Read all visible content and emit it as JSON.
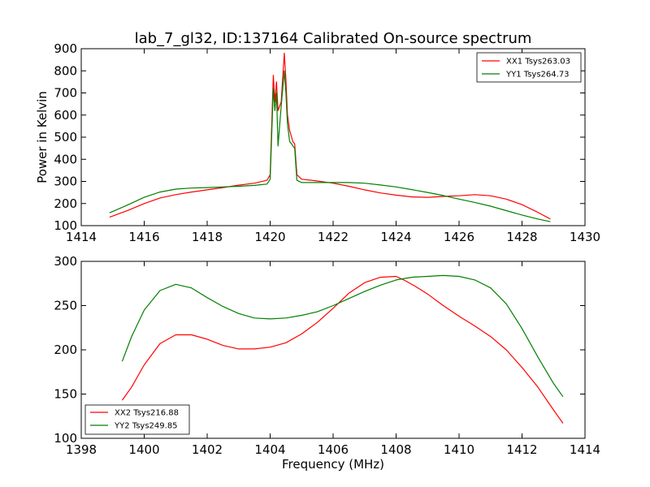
{
  "figure": {
    "title": "lab_7_gl32, ID:137164 Calibrated On-source spectrum"
  },
  "chart_data": [
    {
      "type": "line",
      "title": "lab_7_gl32, ID:137164 Calibrated On-source spectrum",
      "xlabel": "",
      "ylabel": "Power in Kelvin",
      "xlim": [
        1414,
        1430
      ],
      "ylim": [
        100,
        900
      ],
      "xticks": [
        1414,
        1416,
        1418,
        1420,
        1422,
        1424,
        1426,
        1428,
        1430
      ],
      "yticks": [
        100,
        200,
        300,
        400,
        500,
        600,
        700,
        800,
        900
      ],
      "grid": false,
      "legend_position": "top-right",
      "series": [
        {
          "name": "XX1 Tsys263.03",
          "color": "#ff0000",
          "x": [
            1414.9,
            1415.5,
            1416,
            1416.5,
            1417,
            1417.5,
            1418,
            1418.5,
            1419,
            1419.5,
            1419.9,
            1420.0,
            1420.1,
            1420.15,
            1420.2,
            1420.25,
            1420.35,
            1420.45,
            1420.5,
            1420.55,
            1420.62,
            1420.68,
            1420.72,
            1420.78,
            1420.85,
            1421,
            1421.5,
            1422,
            1422.5,
            1423,
            1423.5,
            1424,
            1424.5,
            1425,
            1425.5,
            1426,
            1426.5,
            1427,
            1427.5,
            1428,
            1428.5,
            1428.9
          ],
          "y": [
            138,
            170,
            200,
            225,
            240,
            252,
            262,
            272,
            283,
            292,
            305,
            330,
            780,
            660,
            750,
            620,
            660,
            880,
            760,
            600,
            530,
            500,
            480,
            470,
            330,
            310,
            302,
            292,
            278,
            262,
            248,
            238,
            230,
            228,
            232,
            235,
            240,
            235,
            220,
            195,
            160,
            130
          ]
        },
        {
          "name": "YY1 Tsys264.73",
          "color": "#008000",
          "x": [
            1414.9,
            1415.5,
            1416,
            1416.5,
            1417,
            1417.5,
            1418,
            1418.5,
            1419,
            1419.5,
            1419.9,
            1420.0,
            1420.1,
            1420.15,
            1420.2,
            1420.25,
            1420.35,
            1420.45,
            1420.5,
            1420.55,
            1420.62,
            1420.68,
            1420.72,
            1420.78,
            1420.85,
            1421,
            1421.5,
            1422,
            1422.5,
            1423,
            1423.5,
            1424,
            1424.5,
            1425,
            1425.5,
            1426,
            1426.5,
            1427,
            1427.5,
            1428,
            1428.5,
            1428.9
          ],
          "y": [
            158,
            195,
            228,
            252,
            265,
            270,
            272,
            275,
            278,
            282,
            288,
            310,
            720,
            620,
            700,
            460,
            640,
            800,
            700,
            560,
            480,
            470,
            460,
            450,
            305,
            295,
            295,
            295,
            295,
            292,
            284,
            275,
            263,
            250,
            236,
            220,
            205,
            188,
            168,
            148,
            130,
            118
          ]
        }
      ]
    },
    {
      "type": "line",
      "title": "",
      "xlabel": "Frequency (MHz)",
      "ylabel": "",
      "xlim": [
        1398,
        1414
      ],
      "ylim": [
        100,
        300
      ],
      "xticks": [
        1398,
        1400,
        1402,
        1404,
        1406,
        1408,
        1410,
        1412,
        1414
      ],
      "yticks": [
        100,
        150,
        200,
        250,
        300
      ],
      "grid": false,
      "legend_position": "bottom-left",
      "series": [
        {
          "name": "XX2 Tsys216.88",
          "color": "#ff0000",
          "x": [
            1399.3,
            1399.6,
            1400,
            1400.5,
            1401,
            1401.5,
            1402,
            1402.5,
            1403,
            1403.5,
            1404,
            1404.5,
            1405,
            1405.5,
            1406,
            1406.5,
            1407,
            1407.5,
            1408,
            1408.3,
            1408.6,
            1409,
            1409.5,
            1410,
            1410.5,
            1411,
            1411.5,
            1412,
            1412.5,
            1413,
            1413.3
          ],
          "y": [
            143,
            158,
            183,
            207,
            217,
            217,
            212,
            205,
            201,
            201,
            203,
            208,
            218,
            231,
            247,
            264,
            276,
            282,
            283,
            278,
            272,
            263,
            250,
            238,
            227,
            215,
            200,
            180,
            158,
            132,
            117
          ]
        },
        {
          "name": "YY2 Tsys249.85",
          "color": "#008000",
          "x": [
            1399.3,
            1399.6,
            1400,
            1400.5,
            1401,
            1401.5,
            1402,
            1402.5,
            1403,
            1403.5,
            1404,
            1404.5,
            1405,
            1405.5,
            1406,
            1406.5,
            1407,
            1407.5,
            1408,
            1408.5,
            1409,
            1409.5,
            1410,
            1410.5,
            1411,
            1411.5,
            1412,
            1412.5,
            1413,
            1413.3
          ],
          "y": [
            187,
            215,
            245,
            267,
            274,
            270,
            259,
            249,
            241,
            236,
            235,
            236,
            239,
            243,
            250,
            258,
            266,
            273,
            279,
            282,
            283,
            284,
            283,
            279,
            270,
            252,
            224,
            192,
            162,
            147
          ]
        }
      ]
    }
  ]
}
